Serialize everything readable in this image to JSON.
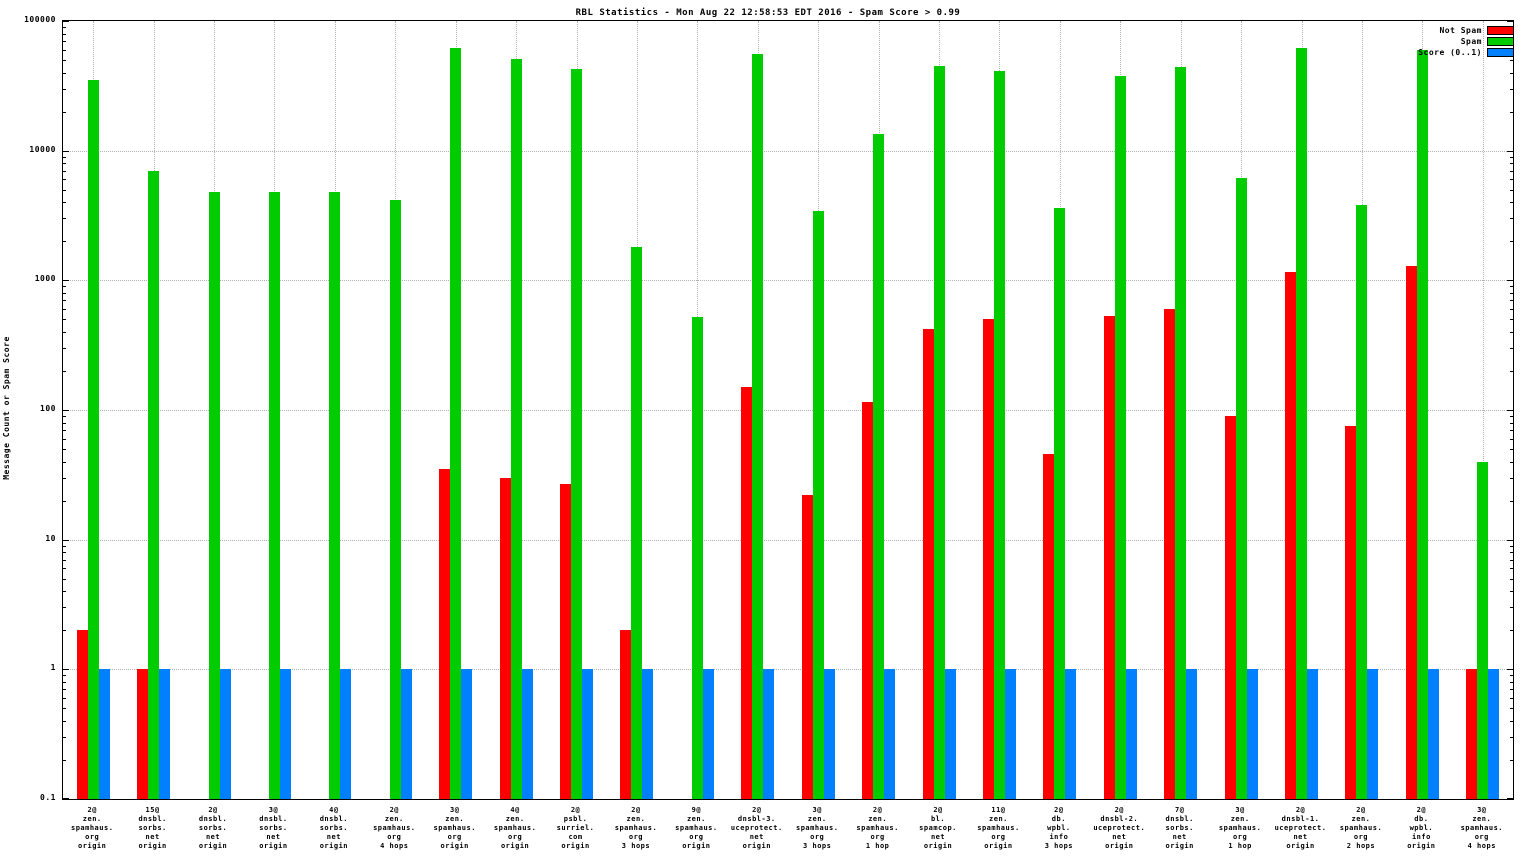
{
  "chart_data": {
    "type": "bar",
    "title": "RBL Statistics - Mon Aug 22 12:58:53 EDT 2016 - Spam Score > 0.99",
    "ylabel": "Message Count or Spam Score",
    "yscale": "log",
    "ylim": [
      0.1,
      100000
    ],
    "yticks": [
      100000,
      10000,
      1000,
      100,
      10,
      1,
      0.1
    ],
    "grid": true,
    "legend_position": "top-right",
    "background": "#ffffff",
    "categories": [
      [
        "2@",
        "zen.",
        "spamhaus.",
        "org",
        "origin"
      ],
      [
        "15@",
        "dnsbl.",
        "sorbs.",
        "net",
        "origin"
      ],
      [
        "2@",
        "dnsbl.",
        "sorbs.",
        "net",
        "origin"
      ],
      [
        "3@",
        "dnsbl.",
        "sorbs.",
        "net",
        "origin"
      ],
      [
        "4@",
        "dnsbl.",
        "sorbs.",
        "net",
        "origin"
      ],
      [
        "2@",
        "zen.",
        "spamhaus.",
        "org",
        "4 hops"
      ],
      [
        "3@",
        "zen.",
        "spamhaus.",
        "org",
        "origin"
      ],
      [
        "4@",
        "zen.",
        "spamhaus.",
        "org",
        "origin"
      ],
      [
        "2@",
        "psbl.",
        "surriel.",
        "com",
        "origin"
      ],
      [
        "2@",
        "zen.",
        "spamhaus.",
        "org",
        "3 hops"
      ],
      [
        "9@",
        "zen.",
        "spamhaus.",
        "org",
        "origin"
      ],
      [
        "2@",
        "dnsbl-3.",
        "uceprotect.",
        "net",
        "origin"
      ],
      [
        "3@",
        "zen.",
        "spamhaus.",
        "org",
        "3 hops"
      ],
      [
        "2@",
        "zen.",
        "spamhaus.",
        "org",
        "1 hop"
      ],
      [
        "2@",
        "bl.",
        "spamcop.",
        "net",
        "origin"
      ],
      [
        "11@",
        "zen.",
        "spamhaus.",
        "org",
        "origin"
      ],
      [
        "2@",
        "db.",
        "wpbl.",
        "info",
        "3 hops"
      ],
      [
        "2@",
        "dnsbl-2.",
        "uceprotect.",
        "net",
        "origin"
      ],
      [
        "7@",
        "dnsbl.",
        "sorbs.",
        "net",
        "origin"
      ],
      [
        "3@",
        "zen.",
        "spamhaus.",
        "org",
        "1 hop"
      ],
      [
        "2@",
        "dnsbl-1.",
        "uceprotect.",
        "net",
        "origin"
      ],
      [
        "2@",
        "zen.",
        "spamhaus.",
        "org",
        "2 hops"
      ],
      [
        "2@",
        "db.",
        "wpbl.",
        "info",
        "origin"
      ],
      [
        "3@",
        "zen.",
        "spamhaus.",
        "org",
        "4 hops"
      ]
    ],
    "series": [
      {
        "name": "Not Spam",
        "key": "not-spam",
        "color": "#ff0000",
        "values": [
          2,
          1,
          null,
          null,
          null,
          null,
          35,
          30,
          27,
          2,
          null,
          150,
          22,
          115,
          420,
          500,
          46,
          530,
          600,
          90,
          1150,
          75,
          1300,
          1
        ]
      },
      {
        "name": "Spam",
        "key": "spam",
        "color": "#00cc00",
        "values": [
          35000,
          7000,
          4800,
          4800,
          4800,
          4200,
          62000,
          51000,
          43000,
          1800,
          520,
          56000,
          3400,
          13500,
          45000,
          41000,
          3600,
          38000,
          44000,
          6200,
          62000,
          3800,
          60000,
          40
        ]
      },
      {
        "name": "Score (0..1)",
        "key": "score",
        "color": "#0080ff",
        "values": [
          1,
          1,
          1,
          1,
          1,
          1,
          1,
          1,
          1,
          1,
          1,
          1,
          1,
          1,
          1,
          1,
          1,
          1,
          1,
          1,
          1,
          1,
          1,
          1
        ]
      }
    ]
  }
}
